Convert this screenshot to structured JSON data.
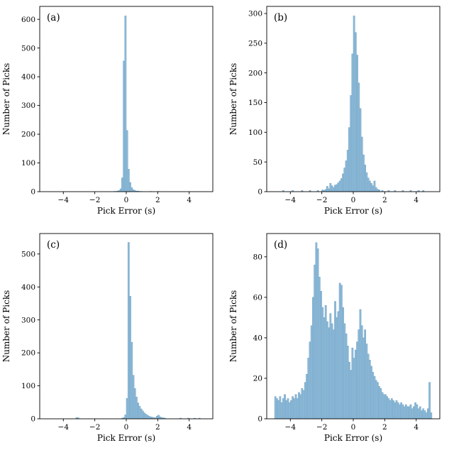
{
  "figure": {
    "background": "#ffffff",
    "bar_fill": "#8fbbd9",
    "bar_edge": "#6d9fc2",
    "axis_color": "#000000"
  },
  "chart_data": [
    {
      "type": "bar",
      "panel_label": "(a)",
      "title": "",
      "xlabel": "Pick Error (s)",
      "ylabel": "Number of Picks",
      "xlim": [
        -5.5,
        5.5
      ],
      "ylim": [
        0,
        645
      ],
      "xticks": [
        -4,
        -2,
        0,
        2,
        4
      ],
      "yticks": [
        0,
        100,
        200,
        300,
        400,
        500,
        600
      ],
      "grid": false,
      "legend": null,
      "bin_width": 0.1,
      "bars": [
        [
          -0.8,
          1
        ],
        [
          -0.7,
          1
        ],
        [
          -0.6,
          2
        ],
        [
          -0.5,
          4
        ],
        [
          -0.4,
          10
        ],
        [
          -0.3,
          48
        ],
        [
          -0.2,
          455
        ],
        [
          -0.1,
          612
        ],
        [
          0.0,
          213
        ],
        [
          0.1,
          78
        ],
        [
          0.2,
          32
        ],
        [
          0.3,
          14
        ],
        [
          0.4,
          7
        ],
        [
          0.5,
          4
        ],
        [
          0.6,
          2
        ],
        [
          0.7,
          2
        ],
        [
          0.8,
          1
        ],
        [
          0.9,
          1
        ],
        [
          1.5,
          1
        ],
        [
          2.0,
          1
        ]
      ]
    },
    {
      "type": "bar",
      "panel_label": "(b)",
      "title": "",
      "xlabel": "Pick Error (s)",
      "ylabel": "Number of Picks",
      "xlim": [
        -5.5,
        5.5
      ],
      "ylim": [
        0,
        312
      ],
      "xticks": [
        -4,
        -2,
        0,
        2,
        4
      ],
      "yticks": [
        0,
        50,
        100,
        150,
        200,
        250,
        300
      ],
      "grid": false,
      "legend": null,
      "bin_width": 0.1,
      "bars": [
        [
          -4.5,
          2
        ],
        [
          -3.9,
          2
        ],
        [
          -3.3,
          2
        ],
        [
          -2.8,
          2
        ],
        [
          -2.3,
          2
        ],
        [
          -2.0,
          3
        ],
        [
          -1.9,
          2
        ],
        [
          -1.8,
          4
        ],
        [
          -1.7,
          9
        ],
        [
          -1.6,
          5
        ],
        [
          -1.5,
          14
        ],
        [
          -1.4,
          10
        ],
        [
          -1.3,
          7
        ],
        [
          -1.2,
          11
        ],
        [
          -1.1,
          12
        ],
        [
          -1.0,
          15
        ],
        [
          -0.9,
          18
        ],
        [
          -0.8,
          22
        ],
        [
          -0.7,
          30
        ],
        [
          -0.6,
          40
        ],
        [
          -0.5,
          52
        ],
        [
          -0.4,
          70
        ],
        [
          -0.3,
          108
        ],
        [
          -0.2,
          162
        ],
        [
          -0.1,
          232
        ],
        [
          0.0,
          296
        ],
        [
          0.1,
          268
        ],
        [
          0.2,
          230
        ],
        [
          0.3,
          183
        ],
        [
          0.4,
          140
        ],
        [
          0.5,
          92
        ],
        [
          0.6,
          62
        ],
        [
          0.7,
          45
        ],
        [
          0.8,
          32
        ],
        [
          0.9,
          23
        ],
        [
          1.0,
          18
        ],
        [
          1.1,
          14
        ],
        [
          1.2,
          10
        ],
        [
          1.3,
          18
        ],
        [
          1.4,
          7
        ],
        [
          1.5,
          4
        ],
        [
          1.6,
          3
        ],
        [
          1.8,
          2
        ],
        [
          2.2,
          2
        ],
        [
          2.6,
          2
        ],
        [
          3.1,
          2
        ],
        [
          3.6,
          2
        ],
        [
          4.1,
          2
        ],
        [
          4.4,
          2
        ]
      ]
    },
    {
      "type": "bar",
      "panel_label": "(c)",
      "title": "",
      "xlabel": "Pick Error (s)",
      "ylabel": "Number of Picks",
      "xlim": [
        -5.5,
        5.5
      ],
      "ylim": [
        0,
        562
      ],
      "xticks": [
        -4,
        -2,
        0,
        2,
        4
      ],
      "yticks": [
        0,
        100,
        200,
        300,
        400,
        500
      ],
      "grid": false,
      "legend": null,
      "bin_width": 0.1,
      "bars": [
        [
          -3.2,
          4
        ],
        [
          -3.1,
          3
        ],
        [
          -0.3,
          2
        ],
        [
          -0.2,
          4
        ],
        [
          -0.1,
          12
        ],
        [
          0.0,
          62
        ],
        [
          0.1,
          535
        ],
        [
          0.2,
          372
        ],
        [
          0.3,
          232
        ],
        [
          0.4,
          132
        ],
        [
          0.5,
          92
        ],
        [
          0.6,
          66
        ],
        [
          0.7,
          48
        ],
        [
          0.8,
          38
        ],
        [
          0.9,
          30
        ],
        [
          1.0,
          24
        ],
        [
          1.1,
          18
        ],
        [
          1.2,
          14
        ],
        [
          1.3,
          11
        ],
        [
          1.4,
          8
        ],
        [
          1.5,
          6
        ],
        [
          1.6,
          5
        ],
        [
          1.7,
          4
        ],
        [
          1.8,
          3
        ],
        [
          1.9,
          8
        ],
        [
          2.0,
          11
        ],
        [
          2.1,
          6
        ],
        [
          2.2,
          4
        ],
        [
          2.3,
          3
        ],
        [
          2.4,
          2
        ],
        [
          3.4,
          2
        ],
        [
          3.9,
          2
        ],
        [
          4.3,
          2
        ],
        [
          4.6,
          2
        ]
      ]
    },
    {
      "type": "bar",
      "panel_label": "(d)",
      "title": "",
      "xlabel": "Pick Error (s)",
      "ylabel": "Number of Picks",
      "xlim": [
        -5.5,
        5.5
      ],
      "ylim": [
        0,
        91.5
      ],
      "xticks": [
        -4,
        -2,
        0,
        2,
        4
      ],
      "yticks": [
        0,
        20,
        40,
        60,
        80
      ],
      "grid": false,
      "legend": null,
      "bin_width": 0.1,
      "bars": [
        [
          -5.0,
          11
        ],
        [
          -4.9,
          10
        ],
        [
          -4.8,
          9
        ],
        [
          -4.7,
          11
        ],
        [
          -4.6,
          8
        ],
        [
          -4.5,
          10
        ],
        [
          -4.4,
          12
        ],
        [
          -4.3,
          9
        ],
        [
          -4.2,
          10
        ],
        [
          -4.1,
          8
        ],
        [
          -4.0,
          9
        ],
        [
          -3.9,
          11
        ],
        [
          -3.8,
          10
        ],
        [
          -3.7,
          12
        ],
        [
          -3.6,
          10
        ],
        [
          -3.5,
          13
        ],
        [
          -3.4,
          12
        ],
        [
          -3.3,
          15
        ],
        [
          -3.2,
          14
        ],
        [
          -3.1,
          18
        ],
        [
          -3.0,
          22
        ],
        [
          -2.9,
          30
        ],
        [
          -2.8,
          38
        ],
        [
          -2.7,
          46
        ],
        [
          -2.6,
          60
        ],
        [
          -2.5,
          76
        ],
        [
          -2.4,
          87
        ],
        [
          -2.3,
          84
        ],
        [
          -2.2,
          70
        ],
        [
          -2.1,
          63
        ],
        [
          -2.0,
          55
        ],
        [
          -1.9,
          50
        ],
        [
          -1.8,
          56
        ],
        [
          -1.7,
          48
        ],
        [
          -1.6,
          45
        ],
        [
          -1.5,
          52
        ],
        [
          -1.4,
          47
        ],
        [
          -1.3,
          44
        ],
        [
          -1.2,
          58
        ],
        [
          -1.1,
          50
        ],
        [
          -1.0,
          53
        ],
        [
          -0.9,
          67
        ],
        [
          -0.8,
          66
        ],
        [
          -0.7,
          55
        ],
        [
          -0.6,
          47
        ],
        [
          -0.5,
          42
        ],
        [
          -0.4,
          36
        ],
        [
          -0.3,
          28
        ],
        [
          -0.2,
          24
        ],
        [
          -0.1,
          35
        ],
        [
          0.0,
          30
        ],
        [
          0.1,
          34
        ],
        [
          0.2,
          38
        ],
        [
          0.3,
          44
        ],
        [
          0.4,
          54
        ],
        [
          0.5,
          46
        ],
        [
          0.6,
          40
        ],
        [
          0.7,
          44
        ],
        [
          0.8,
          37
        ],
        [
          0.9,
          32
        ],
        [
          1.0,
          29
        ],
        [
          1.1,
          26
        ],
        [
          1.2,
          23
        ],
        [
          1.3,
          21
        ],
        [
          1.4,
          19
        ],
        [
          1.5,
          18
        ],
        [
          1.6,
          16
        ],
        [
          1.7,
          15
        ],
        [
          1.8,
          13
        ],
        [
          1.9,
          12
        ],
        [
          2.0,
          12
        ],
        [
          2.1,
          11
        ],
        [
          2.2,
          10
        ],
        [
          2.3,
          9
        ],
        [
          2.4,
          10
        ],
        [
          2.5,
          9
        ],
        [
          2.6,
          8
        ],
        [
          2.7,
          9
        ],
        [
          2.8,
          8
        ],
        [
          2.9,
          7
        ],
        [
          3.0,
          8
        ],
        [
          3.1,
          7
        ],
        [
          3.2,
          6
        ],
        [
          3.3,
          7
        ],
        [
          3.4,
          6
        ],
        [
          3.5,
          6
        ],
        [
          3.6,
          7
        ],
        [
          3.7,
          5
        ],
        [
          3.8,
          6
        ],
        [
          3.9,
          8
        ],
        [
          4.0,
          7
        ],
        [
          4.1,
          5
        ],
        [
          4.2,
          6
        ],
        [
          4.3,
          4
        ],
        [
          4.4,
          5
        ],
        [
          4.5,
          4
        ],
        [
          4.6,
          3
        ],
        [
          4.7,
          5
        ],
        [
          4.8,
          18
        ],
        [
          4.9,
          3
        ]
      ]
    }
  ]
}
